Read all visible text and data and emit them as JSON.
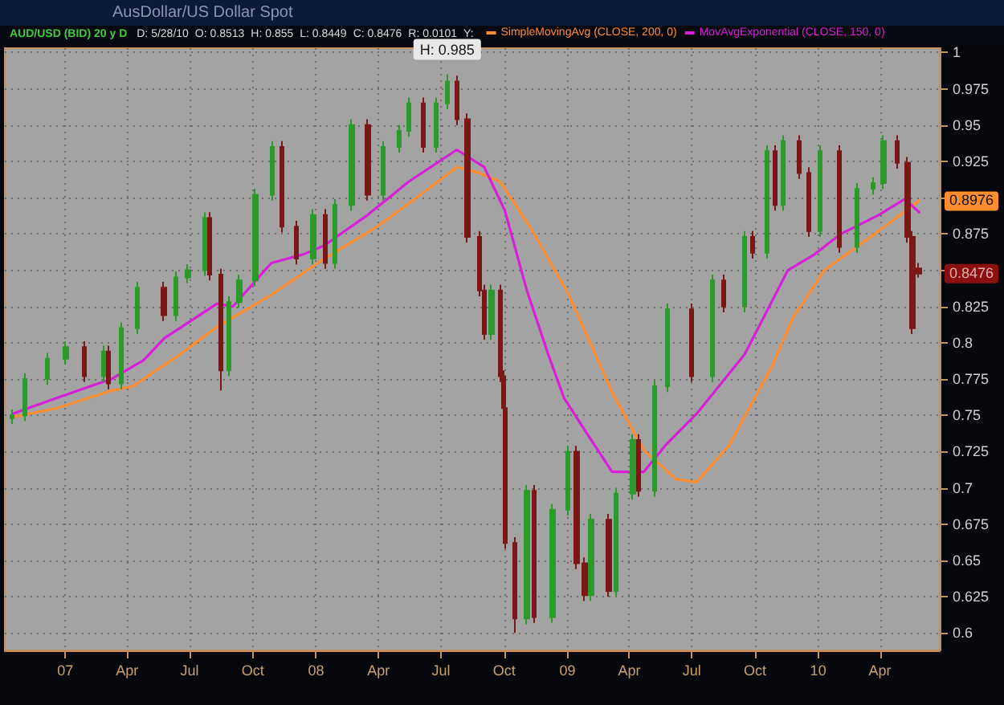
{
  "chart_data": {
    "type": "candlestick",
    "title": "AusDollar/US Dollar Spot",
    "subtitle": "AUD/USD (BID) 20 y D",
    "annotations": [
      "D: 5/28/10",
      "O: 0.8513",
      "H: 0.855",
      "L: 0.8449",
      "C: 0.8476",
      "R: 0.0101",
      "Y:",
      {
        "text": "H: 0.985",
        "x": "2008-07-10",
        "y": 0.985
      },
      {
        "text": "0.8976",
        "y": 0.8976
      },
      {
        "text": "0.8476",
        "y": 0.8476
      }
    ],
    "x": [
      "2006-10-16",
      "2006-11-03",
      "2006-12-06",
      "2007-01-02",
      "2007-01-29",
      "2007-02-26",
      "2007-03-05",
      "2007-03-23",
      "2007-04-16",
      "2007-05-25",
      "2007-06-11",
      "2007-06-29",
      "2007-07-23",
      "2007-07-30",
      "2007-08-15",
      "2007-08-27",
      "2007-09-12",
      "2007-10-05",
      "2007-10-29",
      "2007-11-12",
      "2007-12-04",
      "2007-12-28",
      "2008-01-14",
      "2008-01-29",
      "2008-02-22",
      "2008-03-17",
      "2008-04-08",
      "2008-05-01",
      "2008-05-15",
      "2008-06-05",
      "2008-06-24",
      "2008-07-10",
      "2008-07-24",
      "2008-08-08",
      "2008-08-26",
      "2008-09-02",
      "2008-09-12",
      "2008-09-25",
      "2008-09-30",
      "2008-10-02",
      "2008-10-17",
      "2008-11-03",
      "2008-11-14",
      "2008-12-11",
      "2009-01-02",
      "2009-01-15",
      "2009-01-26",
      "2009-02-05",
      "2009-03-02",
      "2009-03-13",
      "2009-04-06",
      "2009-04-15",
      "2009-05-08",
      "2009-05-27",
      "2009-07-01",
      "2009-07-31",
      "2009-08-17",
      "2009-09-16",
      "2009-09-28",
      "2009-10-19",
      "2009-10-30",
      "2009-11-11",
      "2009-12-04",
      "2009-12-18",
      "2010-01-04",
      "2010-02-01",
      "2010-02-26",
      "2010-03-22",
      "2010-04-06",
      "2010-04-26",
      "2010-05-11",
      "2010-05-18",
      "2010-05-28"
    ],
    "ohlc": [
      [
        0.748,
        0.754,
        0.744,
        0.75
      ],
      [
        0.75,
        0.779,
        0.746,
        0.775
      ],
      [
        0.775,
        0.793,
        0.771,
        0.789
      ],
      [
        0.789,
        0.801,
        0.785,
        0.797
      ],
      [
        0.797,
        0.801,
        0.773,
        0.777
      ],
      [
        0.777,
        0.798,
        0.773,
        0.794
      ],
      [
        0.794,
        0.798,
        0.768,
        0.772
      ],
      [
        0.772,
        0.814,
        0.768,
        0.81
      ],
      [
        0.81,
        0.842,
        0.806,
        0.838
      ],
      [
        0.838,
        0.842,
        0.815,
        0.819
      ],
      [
        0.819,
        0.849,
        0.815,
        0.845
      ],
      [
        0.845,
        0.854,
        0.841,
        0.85
      ],
      [
        0.85,
        0.89,
        0.846,
        0.886
      ],
      [
        0.886,
        0.89,
        0.843,
        0.847
      ],
      [
        0.847,
        0.851,
        0.767,
        0.781
      ],
      [
        0.781,
        0.832,
        0.777,
        0.828
      ],
      [
        0.828,
        0.847,
        0.824,
        0.843
      ],
      [
        0.843,
        0.906,
        0.839,
        0.902
      ],
      [
        0.902,
        0.939,
        0.898,
        0.935
      ],
      [
        0.935,
        0.939,
        0.876,
        0.88
      ],
      [
        0.88,
        0.884,
        0.854,
        0.858
      ],
      [
        0.858,
        0.892,
        0.854,
        0.888
      ],
      [
        0.888,
        0.892,
        0.851,
        0.855
      ],
      [
        0.855,
        0.899,
        0.851,
        0.895
      ],
      [
        0.895,
        0.954,
        0.891,
        0.95
      ],
      [
        0.95,
        0.954,
        0.898,
        0.902
      ],
      [
        0.902,
        0.939,
        0.898,
        0.935
      ],
      [
        0.935,
        0.95,
        0.931,
        0.946
      ],
      [
        0.946,
        0.969,
        0.942,
        0.965
      ],
      [
        0.965,
        0.969,
        0.931,
        0.935
      ],
      [
        0.935,
        0.969,
        0.931,
        0.965
      ],
      [
        0.965,
        0.985,
        0.961,
        0.98
      ],
      [
        0.98,
        0.984,
        0.95,
        0.954
      ],
      [
        0.954,
        0.958,
        0.869,
        0.873
      ],
      [
        0.873,
        0.877,
        0.832,
        0.836
      ],
      [
        0.836,
        0.84,
        0.802,
        0.806
      ],
      [
        0.806,
        0.84,
        0.802,
        0.836
      ],
      [
        0.836,
        0.84,
        0.773,
        0.777
      ],
      [
        0.777,
        0.781,
        0.751,
        0.755
      ],
      [
        0.755,
        0.759,
        0.658,
        0.662
      ],
      [
        0.662,
        0.666,
        0.6,
        0.61
      ],
      [
        0.61,
        0.702,
        0.606,
        0.698
      ],
      [
        0.698,
        0.702,
        0.607,
        0.611
      ],
      [
        0.611,
        0.689,
        0.607,
        0.685
      ],
      [
        0.685,
        0.729,
        0.681,
        0.725
      ],
      [
        0.725,
        0.729,
        0.644,
        0.648
      ],
      [
        0.648,
        0.652,
        0.622,
        0.626
      ],
      [
        0.626,
        0.682,
        0.622,
        0.678
      ],
      [
        0.678,
        0.682,
        0.625,
        0.629
      ],
      [
        0.629,
        0.7,
        0.625,
        0.696
      ],
      [
        0.696,
        0.737,
        0.692,
        0.733
      ],
      [
        0.733,
        0.737,
        0.694,
        0.698
      ],
      [
        0.698,
        0.774,
        0.694,
        0.77
      ],
      [
        0.77,
        0.827,
        0.766,
        0.823
      ],
      [
        0.823,
        0.827,
        0.773,
        0.777
      ],
      [
        0.777,
        0.847,
        0.773,
        0.843
      ],
      [
        0.843,
        0.847,
        0.821,
        0.825
      ],
      [
        0.825,
        0.877,
        0.821,
        0.873
      ],
      [
        0.873,
        0.877,
        0.858,
        0.862
      ],
      [
        0.862,
        0.936,
        0.858,
        0.932
      ],
      [
        0.932,
        0.936,
        0.891,
        0.895
      ],
      [
        0.895,
        0.943,
        0.891,
        0.939
      ],
      [
        0.939,
        0.943,
        0.913,
        0.917
      ],
      [
        0.917,
        0.921,
        0.873,
        0.877
      ],
      [
        0.877,
        0.936,
        0.873,
        0.932
      ],
      [
        0.932,
        0.936,
        0.862,
        0.866
      ],
      [
        0.866,
        0.91,
        0.862,
        0.906
      ],
      [
        0.906,
        0.914,
        0.902,
        0.91
      ],
      [
        0.91,
        0.943,
        0.906,
        0.939
      ],
      [
        0.939,
        0.943,
        0.92,
        0.924
      ],
      [
        0.924,
        0.928,
        0.869,
        0.873
      ],
      [
        0.873,
        0.877,
        0.806,
        0.81
      ],
      [
        0.8513,
        0.855,
        0.8449,
        0.8476
      ]
    ],
    "colors": [
      "#2a9a2a",
      "#2a9a2a",
      "#2a9a2a",
      "#2a9a2a",
      "#7a1818",
      "#2a9a2a",
      "#7a1818",
      "#2a9a2a",
      "#2a9a2a",
      "#7a1818",
      "#2a9a2a",
      "#2a9a2a",
      "#2a9a2a",
      "#7a1818",
      "#7a1818",
      "#2a9a2a",
      "#2a9a2a",
      "#2a9a2a",
      "#2a9a2a",
      "#7a1818",
      "#7a1818",
      "#2a9a2a",
      "#7a1818",
      "#2a9a2a",
      "#2a9a2a",
      "#7a1818",
      "#2a9a2a",
      "#2a9a2a",
      "#2a9a2a",
      "#7a1818",
      "#2a9a2a",
      "#2a9a2a",
      "#7a1818",
      "#7a1818",
      "#7a1818",
      "#7a1818",
      "#2a9a2a",
      "#7a1818",
      "#7a1818",
      "#7a1818",
      "#7a1818",
      "#2a9a2a",
      "#7a1818",
      "#2a9a2a",
      "#2a9a2a",
      "#7a1818",
      "#7a1818",
      "#2a9a2a",
      "#7a1818",
      "#2a9a2a",
      "#2a9a2a",
      "#7a1818",
      "#2a9a2a",
      "#2a9a2a",
      "#7a1818",
      "#2a9a2a",
      "#7a1818",
      "#2a9a2a",
      "#7a1818",
      "#2a9a2a",
      "#7a1818",
      "#2a9a2a",
      "#7a1818",
      "#7a1818",
      "#2a9a2a",
      "#7a1818",
      "#2a9a2a",
      "#2a9a2a",
      "#2a9a2a",
      "#7a1818",
      "#7a1818",
      "#7a1818",
      "#7a1818"
    ],
    "series": [
      {
        "name": "SimpleMovingAvg (CLOSE, 200, 0)",
        "type": "line",
        "color": "#ff8c2e",
        "x": [
          "2006-10-20",
          "2006-12-20",
          "2007-03-09",
          "2007-04-09",
          "2007-06-11",
          "2007-08-10",
          "2007-10-28",
          "2008-01-13",
          "2008-03-30",
          "2008-06-01",
          "2008-07-24",
          "2008-08-26",
          "2008-09-25",
          "2008-11-11",
          "2009-01-03",
          "2009-03-07",
          "2009-04-22",
          "2009-06-08",
          "2009-07-08",
          "2009-08-24",
          "2009-10-26",
          "2009-11-25",
          "2010-01-10",
          "2010-03-30",
          "2010-05-28"
        ],
        "values": [
          0.749,
          0.755,
          0.767,
          0.77,
          0.79,
          0.811,
          0.833,
          0.858,
          0.88,
          0.902,
          0.921,
          0.917,
          0.911,
          0.877,
          0.833,
          0.766,
          0.726,
          0.706,
          0.704,
          0.729,
          0.784,
          0.817,
          0.85,
          0.877,
          0.898
        ]
      },
      {
        "name": "MovAvgExponential (CLOSE, 150, 0)",
        "type": "line",
        "color": "#d81fd8",
        "x": [
          "2006-10-16",
          "2006-12-20",
          "2007-03-09",
          "2007-04-25",
          "2007-05-25",
          "2007-08-10",
          "2007-09-02",
          "2007-10-28",
          "2007-12-14",
          "2008-01-13",
          "2008-03-16",
          "2008-05-15",
          "2008-07-24",
          "2008-09-02",
          "2008-10-02",
          "2008-11-03",
          "2008-12-04",
          "2008-12-27",
          "2009-01-26",
          "2009-03-07",
          "2009-04-22",
          "2009-05-23",
          "2009-07-08",
          "2009-09-16",
          "2009-11-18",
          "2009-12-27",
          "2010-02-03",
          "2010-03-30",
          "2010-05-07",
          "2010-05-28"
        ],
        "values": [
          0.751,
          0.762,
          0.775,
          0.788,
          0.803,
          0.827,
          0.825,
          0.855,
          0.861,
          0.867,
          0.888,
          0.911,
          0.933,
          0.921,
          0.891,
          0.836,
          0.792,
          0.762,
          0.74,
          0.711,
          0.711,
          0.729,
          0.751,
          0.792,
          0.85,
          0.861,
          0.875,
          0.888,
          0.899,
          0.89
        ]
      }
    ],
    "xlim": [
      "2006-10-05",
      "2010-06-27"
    ],
    "xticks": [
      {
        "value": "2007-01-01",
        "label": "07"
      },
      {
        "value": "2007-04-01",
        "label": "Apr"
      },
      {
        "value": "2007-07-01",
        "label": "Jul"
      },
      {
        "value": "2007-10-01",
        "label": "Oct"
      },
      {
        "value": "2008-01-01",
        "label": "08"
      },
      {
        "value": "2008-04-01",
        "label": "Apr"
      },
      {
        "value": "2008-07-01",
        "label": "Jul"
      },
      {
        "value": "2008-10-01",
        "label": "Oct"
      },
      {
        "value": "2009-01-01",
        "label": "09"
      },
      {
        "value": "2009-04-01",
        "label": "Apr"
      },
      {
        "value": "2009-07-01",
        "label": "Jul"
      },
      {
        "value": "2009-10-01",
        "label": "Oct"
      },
      {
        "value": "2010-01-01",
        "label": "10"
      },
      {
        "value": "2010-04-01",
        "label": "Apr"
      }
    ],
    "ylim": [
      0.588,
      1.003
    ],
    "yticks": [
      0.6,
      0.625,
      0.65,
      0.675,
      0.7,
      0.725,
      0.75,
      0.775,
      0.8,
      0.825,
      {
        "value": 0.85,
        "label": null
      },
      0.875,
      {
        "value": 0.9,
        "label": null
      },
      0.925,
      0.95,
      0.975,
      1
    ],
    "grid": true,
    "legend": "top",
    "marker": "none",
    "line_style": "solid"
  }
}
